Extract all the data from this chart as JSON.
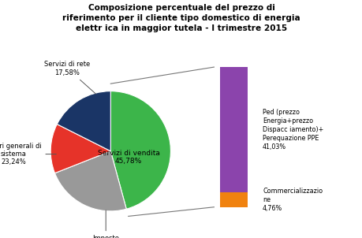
{
  "title": "Composizione percentuale del prezzo di\nriferimento per il cliente tipo domestico di energia\nelettr ica in maggior tutela - I trimestre 2015",
  "pie_labels": [
    "Servizi di vendita",
    "Oneri generali di\nsistema",
    "Imposte",
    "Servizi di rete"
  ],
  "pie_values": [
    45.78,
    23.24,
    13.4,
    17.58
  ],
  "pie_colors": [
    "#3cb54a",
    "#999999",
    "#e63329",
    "#1a3566"
  ],
  "bar_values": [
    4.76,
    41.03
  ],
  "bar_colors": [
    "#f0820f",
    "#8b44ac"
  ],
  "bar_label_top": "Ped (prezzo\nEnergia+prezzo\nDispacc iamento)+\nPerequazione PPE\n41,03%",
  "bar_label_bot": "Commercializzazio\nne\n4,76%",
  "background_color": "#ffffff"
}
